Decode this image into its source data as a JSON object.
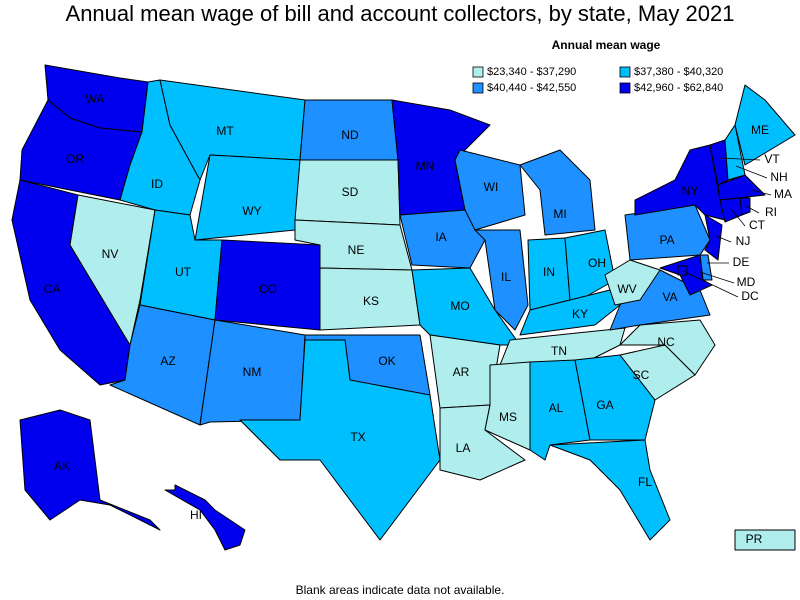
{
  "title": "Annual mean wage of bill and account collectors, by state, May 2021",
  "legend": {
    "title": "Annual mean wage",
    "bins": [
      {
        "label": "$23,340 - $37,290",
        "color": "#b0eeee"
      },
      {
        "label": "$37,380 - $40,320",
        "color": "#00bfff"
      },
      {
        "label": "$40,440 - $42,550",
        "color": "#1e90ff"
      },
      {
        "label": "$42,960 - $62,840",
        "color": "#0000ee"
      }
    ]
  },
  "states": [
    {
      "label": "WA",
      "bin": 3
    },
    {
      "label": "OR",
      "bin": 3
    },
    {
      "label": "CA",
      "bin": 3
    },
    {
      "label": "NV",
      "bin": 0
    },
    {
      "label": "ID",
      "bin": 1
    },
    {
      "label": "MT",
      "bin": 1
    },
    {
      "label": "WY",
      "bin": 1
    },
    {
      "label": "UT",
      "bin": 1
    },
    {
      "label": "CO",
      "bin": 3
    },
    {
      "label": "AZ",
      "bin": 2
    },
    {
      "label": "NM",
      "bin": 2
    },
    {
      "label": "ND",
      "bin": 2
    },
    {
      "label": "SD",
      "bin": 0
    },
    {
      "label": "NE",
      "bin": 0
    },
    {
      "label": "KS",
      "bin": 0
    },
    {
      "label": "OK",
      "bin": 2
    },
    {
      "label": "TX",
      "bin": 1
    },
    {
      "label": "MN",
      "bin": 3
    },
    {
      "label": "IA",
      "bin": 2
    },
    {
      "label": "MO",
      "bin": 1
    },
    {
      "label": "AR",
      "bin": 0
    },
    {
      "label": "LA",
      "bin": 0
    },
    {
      "label": "WI",
      "bin": 2
    },
    {
      "label": "IL",
      "bin": 2
    },
    {
      "label": "MI",
      "bin": 2
    },
    {
      "label": "IN",
      "bin": 1
    },
    {
      "label": "OH",
      "bin": 1
    },
    {
      "label": "KY",
      "bin": 1
    },
    {
      "label": "TN",
      "bin": 0
    },
    {
      "label": "MS",
      "bin": 0
    },
    {
      "label": "AL",
      "bin": 1
    },
    {
      "label": "GA",
      "bin": 1
    },
    {
      "label": "FL",
      "bin": 1
    },
    {
      "label": "SC",
      "bin": 0
    },
    {
      "label": "NC",
      "bin": 0
    },
    {
      "label": "VA",
      "bin": 2
    },
    {
      "label": "WV",
      "bin": 0
    },
    {
      "label": "PA",
      "bin": 2
    },
    {
      "label": "NY",
      "bin": 3
    },
    {
      "label": "VT",
      "bin": 3
    },
    {
      "label": "NH",
      "bin": 1
    },
    {
      "label": "ME",
      "bin": 1
    },
    {
      "label": "MA",
      "bin": 3
    },
    {
      "label": "CT",
      "bin": 3
    },
    {
      "label": "RI",
      "bin": 3
    },
    {
      "label": "NJ",
      "bin": 3
    },
    {
      "label": "DE",
      "bin": 2
    },
    {
      "label": "MD",
      "bin": 3
    },
    {
      "label": "DC",
      "bin": 3
    },
    {
      "label": "AK",
      "bin": 3
    },
    {
      "label": "HI",
      "bin": 3
    },
    {
      "label": "PR",
      "bin": 0
    }
  ],
  "footnote": "Blank areas indicate data not available."
}
